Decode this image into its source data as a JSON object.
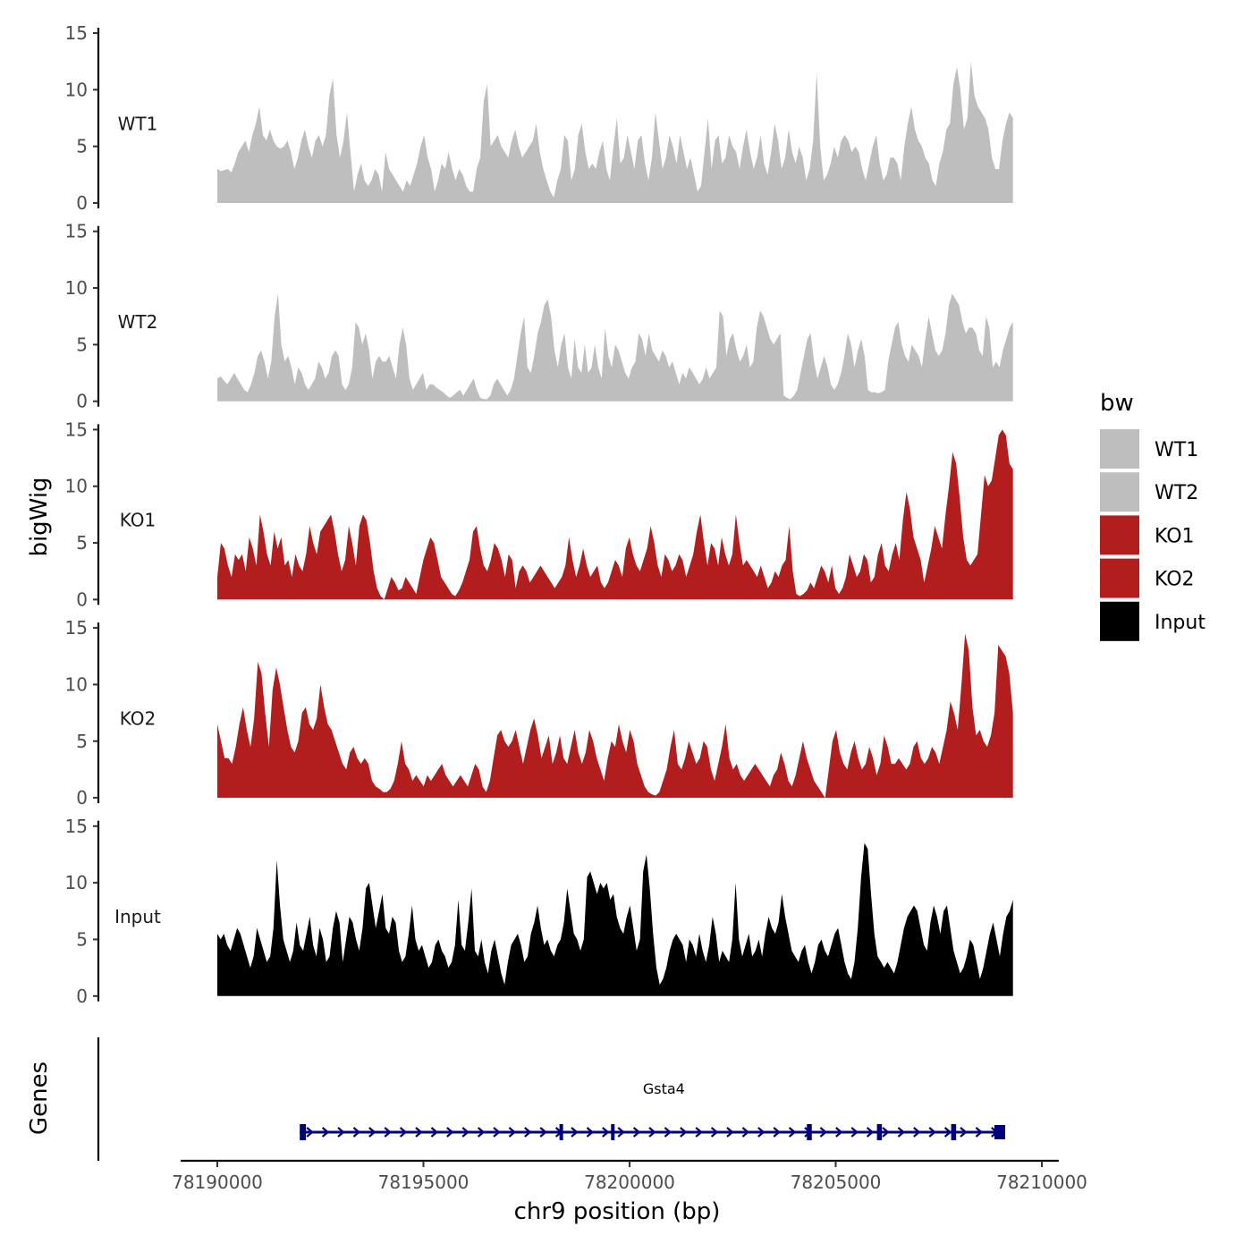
{
  "chart_data": {
    "type": "area",
    "title": "",
    "xlabel": "chr9 position (bp)",
    "ylabel": "bigWig",
    "genes_label": "Genes",
    "xlim": [
      78189200,
      78210300
    ],
    "data_range": [
      78190000,
      78209300
    ],
    "xticks": [
      78190000,
      78195000,
      78200000,
      78205000,
      78210000
    ],
    "xtick_labels": [
      "78190000",
      "78195000",
      "78200000",
      "78205000",
      "78210000"
    ],
    "ylim": [
      0,
      15
    ],
    "yticks": [
      0,
      5,
      10,
      15
    ],
    "ytick_labels": [
      "0",
      "5",
      "10",
      "15"
    ],
    "legend": {
      "title": "bw",
      "position": "right",
      "entries": [
        {
          "label": "WT1",
          "color": "#bebebe"
        },
        {
          "label": "WT2",
          "color": "#bebebe"
        },
        {
          "label": "KO1",
          "color": "#b21e1e"
        },
        {
          "label": "KO2",
          "color": "#b21e1e"
        },
        {
          "label": "Input",
          "color": "#000000"
        }
      ]
    },
    "series": [
      {
        "name": "WT1",
        "color": "#bebebe",
        "values": [
          3.0,
          2.8,
          2.9,
          3.0,
          2.7,
          3.5,
          4.5,
          5.0,
          5.5,
          4.5,
          6.0,
          7.0,
          8.5,
          6.0,
          5.5,
          6.5,
          5.5,
          5.0,
          4.8,
          5.0,
          5.5,
          4.5,
          3.0,
          4.0,
          5.5,
          6.5,
          5.0,
          4.0,
          5.5,
          6.0,
          5.0,
          6.0,
          9.5,
          11.0,
          6.0,
          4.0,
          5.5,
          8.0,
          4.5,
          1.0,
          2.5,
          3.5,
          2.0,
          1.5,
          2.0,
          3.0,
          2.5,
          1.0,
          4.5,
          3.0,
          2.5,
          2.0,
          1.5,
          1.0,
          2.0,
          1.5,
          2.5,
          3.5,
          5.0,
          6.0,
          4.0,
          3.0,
          1.0,
          2.0,
          3.5,
          3.0,
          4.5,
          3.0,
          2.0,
          3.0,
          2.5,
          1.5,
          1.0,
          1.0,
          3.0,
          4.0,
          9.0,
          10.5,
          5.0,
          5.5,
          6.0,
          5.0,
          4.5,
          4.0,
          5.5,
          6.5,
          5.0,
          4.0,
          4.5,
          5.0,
          5.5,
          7.0,
          4.5,
          3.0,
          2.0,
          1.0,
          0.5,
          2.0,
          3.0,
          6.0,
          5.5,
          2.0,
          3.0,
          6.0,
          7.0,
          4.5,
          3.0,
          3.5,
          3.0,
          4.5,
          5.5,
          3.0,
          2.0,
          5.0,
          7.5,
          3.5,
          4.0,
          6.0,
          4.5,
          3.0,
          5.5,
          6.0,
          3.5,
          2.0,
          4.0,
          8.0,
          5.5,
          3.0,
          4.0,
          6.0,
          5.0,
          3.5,
          6.0,
          4.5,
          3.0,
          4.0,
          2.5,
          1.0,
          1.5,
          4.5,
          7.5,
          3.0,
          5.5,
          6.0,
          3.5,
          4.0,
          6.0,
          5.0,
          4.5,
          3.0,
          5.0,
          6.5,
          4.5,
          3.0,
          4.0,
          6.0,
          3.5,
          2.5,
          4.5,
          7.0,
          5.5,
          3.0,
          4.0,
          6.5,
          4.5,
          3.5,
          5.0,
          4.0,
          2.0,
          3.0,
          5.5,
          11.5,
          5.0,
          2.0,
          2.5,
          3.5,
          5.0,
          4.0,
          5.5,
          6.0,
          5.5,
          4.5,
          5.0,
          4.5,
          3.0,
          2.0,
          3.5,
          5.0,
          6.0,
          3.5,
          2.0,
          2.5,
          4.0,
          4.0,
          3.5,
          2.0,
          5.0,
          7.0,
          8.5,
          6.5,
          5.5,
          5.0,
          4.0,
          3.5,
          2.0,
          1.5,
          3.5,
          4.5,
          6.5,
          7.0,
          10.5,
          12.0,
          10.0,
          6.5,
          7.5,
          12.5,
          9.5,
          8.5,
          8.0,
          7.5,
          6.5,
          4.0,
          3.0,
          3.0,
          5.5,
          7.0,
          8.0,
          7.5
        ]
      },
      {
        "name": "WT2",
        "color": "#bebebe",
        "values": [
          2.0,
          2.2,
          1.8,
          1.5,
          2.0,
          2.5,
          2.0,
          1.5,
          1.0,
          0.8,
          1.5,
          2.5,
          4.0,
          4.5,
          3.5,
          2.0,
          3.5,
          7.5,
          9.5,
          5.0,
          3.5,
          4.0,
          3.0,
          1.5,
          3.0,
          2.5,
          1.5,
          1.0,
          1.5,
          2.0,
          3.5,
          3.0,
          2.0,
          2.5,
          4.0,
          4.5,
          4.0,
          1.5,
          1.0,
          1.5,
          3.0,
          7.0,
          6.5,
          5.0,
          6.0,
          4.5,
          2.0,
          3.5,
          4.0,
          3.5,
          3.5,
          4.0,
          3.0,
          2.0,
          5.0,
          6.5,
          5.0,
          2.0,
          1.0,
          1.5,
          2.0,
          2.5,
          1.0,
          1.5,
          1.5,
          1.2,
          1.0,
          0.8,
          0.5,
          0.3,
          0.5,
          0.8,
          1.0,
          0.5,
          1.0,
          1.5,
          2.0,
          1.0,
          0.3,
          0.2,
          0.2,
          0.5,
          1.5,
          2.0,
          1.5,
          1.0,
          0.5,
          1.0,
          2.0,
          4.0,
          6.0,
          7.5,
          3.0,
          2.5,
          4.0,
          6.0,
          7.0,
          8.5,
          9.0,
          7.5,
          4.5,
          3.0,
          5.0,
          6.0,
          3.0,
          2.0,
          5.5,
          3.0,
          2.5,
          5.0,
          2.5,
          3.0,
          5.0,
          3.0,
          2.0,
          6.5,
          4.0,
          3.0,
          5.0,
          4.5,
          3.5,
          2.5,
          2.0,
          3.0,
          3.5,
          6.0,
          5.5,
          4.0,
          6.0,
          4.5,
          4.0,
          3.5,
          4.5,
          4.0,
          3.0,
          3.5,
          2.5,
          1.5,
          2.5,
          2.0,
          3.0,
          2.5,
          2.0,
          1.5,
          2.0,
          3.0,
          2.0,
          2.5,
          3.0,
          8.0,
          7.5,
          4.0,
          5.5,
          6.0,
          4.5,
          3.5,
          4.0,
          5.0,
          3.0,
          3.5,
          6.5,
          8.0,
          7.5,
          6.5,
          5.5,
          5.0,
          5.5,
          6.0,
          0.5,
          0.3,
          0.2,
          0.5,
          1.0,
          2.5,
          4.0,
          5.5,
          6.0,
          3.5,
          2.0,
          3.0,
          4.0,
          3.0,
          1.5,
          1.0,
          1.5,
          2.5,
          4.0,
          6.0,
          5.0,
          3.0,
          4.5,
          5.5,
          4.0,
          1.0,
          0.8,
          0.8,
          0.7,
          0.8,
          1.0,
          3.5,
          5.0,
          6.5,
          7.0,
          5.0,
          4.0,
          3.5,
          5.0,
          4.5,
          4.0,
          3.0,
          5.5,
          7.5,
          6.0,
          4.5,
          4.0,
          4.5,
          6.0,
          8.5,
          9.5,
          9.0,
          8.5,
          7.0,
          6.0,
          6.5,
          6.5,
          6.0,
          4.5,
          4.0,
          7.5,
          6.5,
          3.0,
          3.5,
          3.0,
          4.5,
          5.5,
          6.5,
          7.0
        ]
      },
      {
        "name": "KO1",
        "color": "#b21e1e",
        "values": [
          2.0,
          5.0,
          4.5,
          3.0,
          2.0,
          4.0,
          3.5,
          4.0,
          2.5,
          5.5,
          4.5,
          3.0,
          7.5,
          6.0,
          4.0,
          3.0,
          6.0,
          4.5,
          5.5,
          3.0,
          3.5,
          2.0,
          4.0,
          3.0,
          2.5,
          4.0,
          6.5,
          5.0,
          4.0,
          6.0,
          6.5,
          7.0,
          7.5,
          6.0,
          4.0,
          2.5,
          3.5,
          6.5,
          5.0,
          3.0,
          6.5,
          7.5,
          7.0,
          5.0,
          2.5,
          1.0,
          0.3,
          0.0,
          1.0,
          2.0,
          1.5,
          0.8,
          1.0,
          2.0,
          1.5,
          1.0,
          0.5,
          2.0,
          3.5,
          4.5,
          5.5,
          5.0,
          3.5,
          2.0,
          1.5,
          1.0,
          0.5,
          0.3,
          0.8,
          1.5,
          2.5,
          3.5,
          6.0,
          6.5,
          4.5,
          3.0,
          2.5,
          3.5,
          5.0,
          4.5,
          3.5,
          2.0,
          4.0,
          3.5,
          1.0,
          2.5,
          3.0,
          2.5,
          1.5,
          2.0,
          2.5,
          3.0,
          2.5,
          2.0,
          1.5,
          1.0,
          1.5,
          2.0,
          3.0,
          5.5,
          3.5,
          2.0,
          3.0,
          4.5,
          3.0,
          2.0,
          2.5,
          3.0,
          1.5,
          1.0,
          1.5,
          2.5,
          3.5,
          3.0,
          2.0,
          4.5,
          5.5,
          4.0,
          3.0,
          2.5,
          3.5,
          4.5,
          6.5,
          5.0,
          3.0,
          2.0,
          4.0,
          3.5,
          2.5,
          3.0,
          4.0,
          3.5,
          2.0,
          3.0,
          4.0,
          6.0,
          7.5,
          5.0,
          3.0,
          5.0,
          4.5,
          3.0,
          5.5,
          4.0,
          3.0,
          4.0,
          7.5,
          5.0,
          3.0,
          3.5,
          3.0,
          2.5,
          2.0,
          3.0,
          2.0,
          1.0,
          1.5,
          2.5,
          2.0,
          3.0,
          3.5,
          6.5,
          2.5,
          0.5,
          0.3,
          0.5,
          0.8,
          1.5,
          1.0,
          2.0,
          3.0,
          2.5,
          1.5,
          3.0,
          1.0,
          0.5,
          1.0,
          2.0,
          4.0,
          3.0,
          2.0,
          2.5,
          4.0,
          3.5,
          1.5,
          2.0,
          4.0,
          5.0,
          3.0,
          2.5,
          4.0,
          5.0,
          3.5,
          7.0,
          9.5,
          8.0,
          5.5,
          4.5,
          3.5,
          1.5,
          3.0,
          4.5,
          6.5,
          5.5,
          4.5,
          7.5,
          10.0,
          13.0,
          12.0,
          9.0,
          5.5,
          3.5,
          3.0,
          3.5,
          4.0,
          7.5,
          11.0,
          10.0,
          10.5,
          12.5,
          14.5,
          15.0,
          14.5,
          12.0,
          11.5
        ]
      },
      {
        "name": "KO2",
        "color": "#b21e1e",
        "values": [
          6.5,
          5.0,
          3.5,
          3.5,
          3.0,
          4.5,
          6.5,
          8.0,
          6.0,
          4.5,
          7.0,
          12.0,
          11.0,
          7.5,
          4.5,
          9.5,
          11.5,
          10.0,
          8.0,
          6.0,
          4.5,
          4.0,
          5.0,
          7.5,
          8.0,
          6.5,
          6.0,
          7.0,
          10.0,
          8.0,
          6.5,
          6.0,
          5.0,
          4.0,
          3.0,
          2.5,
          4.0,
          4.5,
          3.5,
          3.0,
          3.5,
          3.0,
          1.5,
          1.0,
          0.8,
          0.5,
          0.5,
          0.8,
          1.5,
          3.0,
          5.0,
          3.0,
          2.5,
          1.5,
          2.0,
          1.5,
          1.0,
          2.0,
          1.5,
          2.0,
          2.5,
          3.0,
          2.0,
          1.5,
          1.0,
          1.5,
          2.0,
          1.5,
          1.0,
          2.0,
          3.0,
          2.5,
          1.0,
          0.5,
          1.5,
          3.5,
          5.5,
          6.0,
          5.0,
          4.5,
          5.0,
          6.0,
          4.5,
          3.0,
          4.5,
          6.0,
          7.0,
          5.5,
          3.5,
          4.5,
          5.5,
          3.0,
          4.0,
          5.5,
          3.5,
          3.0,
          4.5,
          6.0,
          4.0,
          3.0,
          4.0,
          6.0,
          5.0,
          3.5,
          2.5,
          1.5,
          3.5,
          5.0,
          4.5,
          6.5,
          5.0,
          4.0,
          6.0,
          5.0,
          3.0,
          2.0,
          1.0,
          0.5,
          0.3,
          0.2,
          0.5,
          1.5,
          2.5,
          4.5,
          6.0,
          3.0,
          2.5,
          3.5,
          5.0,
          4.0,
          3.0,
          3.5,
          5.0,
          4.5,
          2.5,
          1.5,
          3.0,
          4.5,
          6.5,
          3.5,
          2.5,
          3.0,
          2.0,
          1.5,
          2.0,
          2.5,
          3.0,
          2.5,
          2.0,
          1.5,
          1.0,
          2.0,
          2.5,
          4.0,
          3.0,
          1.5,
          1.0,
          2.0,
          3.5,
          5.0,
          3.5,
          2.5,
          1.5,
          1.0,
          0.5,
          0.0,
          2.5,
          5.0,
          6.0,
          4.0,
          3.0,
          2.5,
          4.0,
          5.0,
          3.5,
          2.5,
          3.0,
          4.5,
          3.5,
          2.0,
          3.0,
          5.5,
          4.5,
          3.0,
          3.0,
          3.5,
          3.0,
          2.5,
          3.0,
          4.5,
          5.0,
          3.5,
          3.0,
          3.5,
          4.5,
          4.0,
          3.0,
          4.5,
          6.0,
          8.5,
          7.5,
          6.0,
          10.0,
          14.5,
          13.0,
          8.0,
          5.5,
          6.0,
          5.0,
          4.5,
          5.5,
          7.5,
          13.5,
          13.0,
          12.5,
          11.0,
          7.5
        ]
      },
      {
        "name": "Input",
        "color": "#000000",
        "values": [
          5.5,
          5.0,
          5.5,
          4.5,
          4.0,
          5.0,
          6.0,
          5.5,
          4.5,
          3.5,
          2.5,
          3.5,
          6.0,
          5.0,
          4.0,
          3.0,
          3.5,
          6.0,
          12.0,
          8.0,
          5.0,
          4.0,
          3.0,
          4.0,
          6.5,
          4.5,
          4.0,
          5.5,
          7.0,
          4.5,
          3.5,
          6.0,
          5.0,
          3.0,
          3.5,
          6.0,
          7.5,
          6.5,
          3.0,
          5.0,
          7.0,
          6.5,
          5.0,
          4.0,
          6.0,
          9.5,
          10.0,
          8.0,
          6.0,
          7.5,
          9.0,
          6.0,
          5.5,
          7.0,
          6.5,
          4.0,
          3.0,
          3.5,
          5.5,
          8.0,
          5.0,
          4.0,
          4.5,
          3.5,
          2.5,
          3.0,
          4.5,
          5.0,
          4.0,
          3.5,
          2.5,
          3.0,
          4.5,
          8.5,
          4.5,
          4.0,
          6.5,
          9.5,
          4.0,
          3.5,
          5.0,
          3.0,
          2.0,
          4.0,
          5.0,
          3.5,
          2.0,
          1.0,
          3.0,
          4.5,
          5.0,
          5.5,
          4.5,
          3.0,
          3.5,
          5.5,
          6.5,
          8.0,
          6.0,
          4.5,
          5.0,
          4.0,
          3.5,
          4.5,
          5.0,
          6.5,
          9.5,
          7.5,
          5.5,
          5.0,
          4.0,
          5.0,
          10.5,
          11.0,
          10.0,
          9.0,
          10.0,
          9.5,
          10.0,
          8.5,
          9.0,
          7.0,
          6.0,
          5.5,
          7.0,
          8.0,
          6.0,
          4.0,
          5.0,
          11.0,
          12.5,
          9.5,
          5.5,
          2.5,
          1.0,
          1.5,
          2.5,
          4.0,
          5.0,
          5.5,
          5.0,
          4.5,
          3.0,
          5.0,
          4.5,
          3.5,
          5.5,
          4.0,
          3.0,
          4.5,
          7.0,
          5.5,
          3.0,
          4.0,
          3.5,
          3.0,
          5.0,
          10.0,
          5.0,
          3.5,
          4.5,
          5.5,
          3.5,
          4.0,
          5.0,
          3.5,
          5.5,
          7.0,
          6.0,
          5.5,
          6.5,
          9.0,
          7.0,
          5.5,
          4.0,
          3.5,
          3.0,
          4.0,
          4.5,
          3.0,
          2.0,
          3.0,
          4.5,
          5.0,
          4.0,
          3.5,
          4.5,
          5.5,
          6.0,
          4.5,
          3.0,
          2.0,
          1.5,
          3.0,
          6.0,
          10.5,
          13.5,
          13.0,
          9.0,
          5.5,
          3.5,
          3.0,
          2.5,
          3.0,
          2.5,
          2.0,
          3.0,
          4.5,
          6.0,
          7.0,
          7.5,
          8.0,
          7.5,
          6.0,
          4.5,
          4.0,
          6.5,
          8.0,
          7.0,
          5.5,
          7.5,
          8.0,
          6.0,
          4.0,
          3.0,
          2.0,
          2.5,
          3.5,
          5.0,
          4.5,
          3.0,
          1.5,
          2.5,
          4.0,
          5.5,
          6.5,
          5.0,
          3.5,
          5.5,
          7.0,
          7.5,
          8.5
        ]
      }
    ],
    "gene": {
      "name": "Gsta4",
      "start": 78192000,
      "end": 78209100,
      "strand": "+",
      "color": "#00007f",
      "exons": [
        {
          "start": 78192000,
          "end": 78192150
        },
        {
          "start": 78198300,
          "end": 78198380
        },
        {
          "start": 78199550,
          "end": 78199600
        },
        {
          "start": 78204300,
          "end": 78204420
        },
        {
          "start": 78206000,
          "end": 78206120
        },
        {
          "start": 78207800,
          "end": 78207920
        },
        {
          "start": 78208850,
          "end": 78209100
        }
      ]
    }
  }
}
